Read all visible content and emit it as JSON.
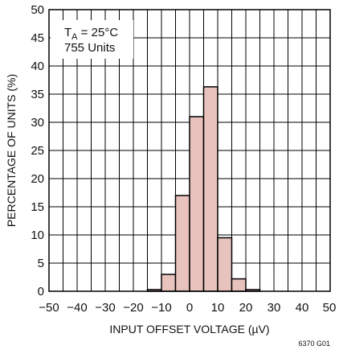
{
  "chart_data": {
    "type": "bar",
    "xlabel": "INPUT OFFSET VOLTAGE (µV)",
    "ylabel": "PERCENTAGE OF UNITS (%)",
    "xlim": [
      -50,
      50
    ],
    "ylim": [
      0,
      50
    ],
    "x_ticks": [
      -50,
      -40,
      -30,
      -20,
      -10,
      0,
      10,
      20,
      30,
      40,
      50
    ],
    "y_ticks": [
      0,
      5,
      10,
      15,
      20,
      25,
      30,
      35,
      40,
      45,
      50
    ],
    "x_minor_step": 5,
    "bin_width": 5,
    "bins": [
      {
        "start": -15,
        "end": -10,
        "value": 0.3
      },
      {
        "start": -10,
        "end": -5,
        "value": 3.0
      },
      {
        "start": -5,
        "end": 0,
        "value": 17.0
      },
      {
        "start": 0,
        "end": 5,
        "value": 31.0
      },
      {
        "start": 5,
        "end": 10,
        "value": 36.3
      },
      {
        "start": 10,
        "end": 15,
        "value": 9.5
      },
      {
        "start": 15,
        "end": 20,
        "value": 2.2
      },
      {
        "start": 20,
        "end": 25,
        "value": 0.3
      }
    ],
    "grid": true,
    "bar_color": "#e8c3be",
    "annotation": {
      "temp_symbol": "T",
      "temp_subscript": "A",
      "temp_value": " = 25°C",
      "units": "755 Units"
    },
    "figure_id": "6370 G01"
  }
}
